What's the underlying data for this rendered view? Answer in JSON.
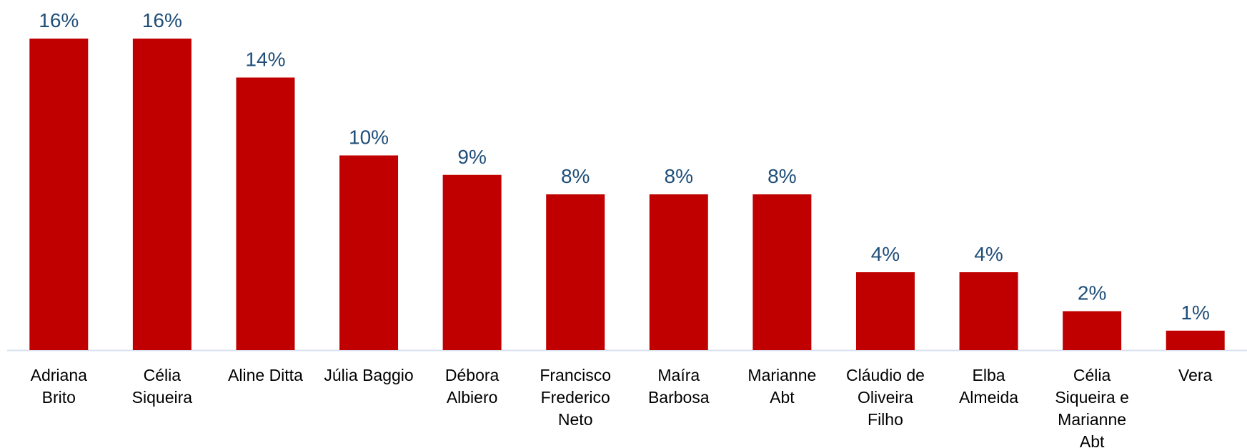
{
  "chart_data": {
    "type": "bar",
    "categories": [
      "Adriana Brito",
      "Célia Siqueira",
      "Aline Ditta",
      "Júlia Baggio",
      "Débora Albiero",
      "Francisco Frederico Neto",
      "Maíra Barbosa",
      "Marianne Abt",
      "Cláudio de Oliveira Filho",
      "Elba Almeida",
      "Célia Siqueira e Marianne Abt",
      "Vera"
    ],
    "values": [
      16,
      16,
      14,
      10,
      9,
      8,
      8,
      8,
      4,
      4,
      2,
      1
    ],
    "value_labels": [
      "16%",
      "16%",
      "14%",
      "10%",
      "9%",
      "8%",
      "8%",
      "8%",
      "4%",
      "4%",
      "2%",
      "1%"
    ],
    "color": "#c00000",
    "ylim": [
      0,
      16
    ]
  }
}
